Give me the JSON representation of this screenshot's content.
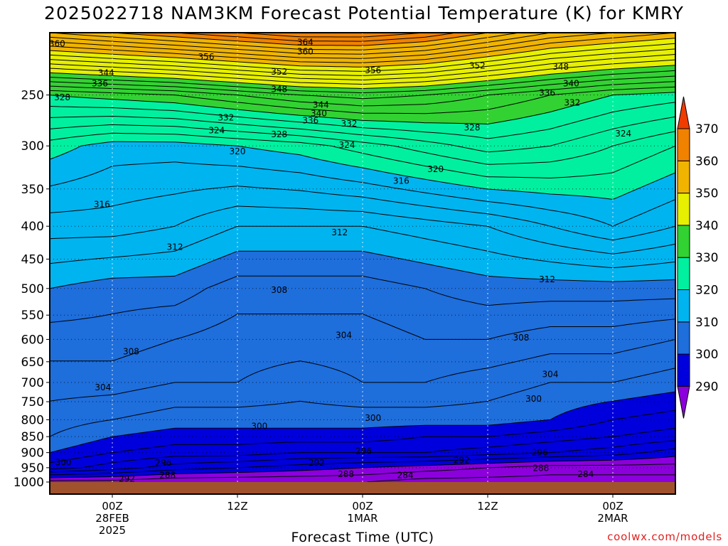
{
  "chart_data": {
    "type": "heatmap",
    "title": "2025022718 NAM3KM Forecast Potential Temperature (K) for KMRY",
    "xlabel": "Forecast Time (UTC)",
    "ylabel": "",
    "y_scale": "log",
    "ylim": [
      1000,
      200
    ],
    "y_ticks": [
      250,
      300,
      350,
      400,
      450,
      500,
      550,
      600,
      650,
      700,
      750,
      800,
      850,
      900,
      950,
      1000
    ],
    "x_range_hours": [
      -6,
      54
    ],
    "x_ticks": [
      {
        "hour": 0,
        "lines": [
          "00Z",
          "28FEB",
          "2025"
        ]
      },
      {
        "hour": 12,
        "lines": [
          "12Z"
        ]
      },
      {
        "hour": 24,
        "lines": [
          "00Z",
          "1MAR"
        ]
      },
      {
        "hour": 36,
        "lines": [
          "12Z"
        ]
      },
      {
        "hour": 48,
        "lines": [
          "00Z",
          "2MAR"
        ]
      }
    ],
    "grid": true,
    "colorbar": {
      "ticks": [
        290,
        300,
        310,
        320,
        330,
        340,
        350,
        360,
        370
      ],
      "bands": [
        {
          "from": 280,
          "to": 290,
          "color": "#8c00dc"
        },
        {
          "from": 290,
          "to": 300,
          "color": "#0000dc"
        },
        {
          "from": 300,
          "to": 310,
          "color": "#1e6edc"
        },
        {
          "from": 310,
          "to": 320,
          "color": "#00b4f0"
        },
        {
          "from": 320,
          "to": 330,
          "color": "#00f0a0"
        },
        {
          "from": 330,
          "to": 340,
          "color": "#32d232"
        },
        {
          "from": 340,
          "to": 350,
          "color": "#e6f000"
        },
        {
          "from": 350,
          "to": 360,
          "color": "#f0b400"
        },
        {
          "from": 360,
          "to": 370,
          "color": "#f08200"
        },
        {
          "from": 370,
          "to": 380,
          "color": "#f03c00"
        }
      ]
    },
    "ground_color": "#a0522d",
    "isentrope_profile": {
      "hours": [
        -6,
        0,
        6,
        12,
        18,
        24,
        30,
        36,
        42,
        48,
        54
      ],
      "levels": [
        {
          "p": 1000,
          "theta": [
            287,
            287,
            286,
            286,
            286,
            286,
            285,
            285,
            285,
            285,
            285
          ]
        },
        {
          "p": 950,
          "theta": [
            297,
            295,
            293,
            292,
            291,
            290,
            289,
            288,
            287,
            287,
            287
          ]
        },
        {
          "p": 900,
          "theta": [
            300,
            298,
            297,
            297,
            296,
            296,
            296,
            295,
            294,
            293,
            291
          ]
        },
        {
          "p": 850,
          "theta": [
            302,
            300,
            299,
            299,
            299,
            299,
            298,
            298,
            297,
            296,
            295
          ]
        },
        {
          "p": 800,
          "theta": [
            303,
            302,
            301,
            301,
            301,
            301,
            301,
            301,
            300,
            298,
            297
          ]
        },
        {
          "p": 700,
          "theta": [
            305,
            305,
            304,
            304,
            303,
            304,
            304,
            303,
            302,
            302,
            301
          ]
        },
        {
          "p": 600,
          "theta": [
            307,
            307,
            306,
            305,
            305,
            305,
            306,
            306,
            305,
            305,
            304
          ]
        },
        {
          "p": 500,
          "theta": [
            310,
            309,
            309,
            307,
            307,
            307,
            308,
            309,
            309,
            309,
            309
          ]
        },
        {
          "p": 400,
          "theta": [
            315,
            315,
            314,
            312,
            312,
            312,
            313,
            314,
            316,
            318,
            316
          ]
        },
        {
          "p": 300,
          "theta": [
            321,
            319,
            319,
            320,
            321,
            323,
            325,
            327,
            326,
            324,
            322
          ]
        },
        {
          "p": 250,
          "theta": [
            330,
            331,
            332,
            334,
            336,
            337,
            336,
            334,
            332,
            330,
            329
          ]
        },
        {
          "p": 200,
          "theta": [
            358,
            360,
            362,
            364,
            366,
            366,
            364,
            360,
            356,
            354,
            352
          ]
        }
      ]
    },
    "contour_labels": [
      {
        "hour": -5.3,
        "p": 208,
        "text": "360"
      },
      {
        "hour": 18.5,
        "p": 207,
        "text": "364"
      },
      {
        "hour": 18.5,
        "p": 214,
        "text": "360"
      },
      {
        "hour": 9.0,
        "p": 218,
        "text": "356"
      },
      {
        "hour": 25.0,
        "p": 229,
        "text": "356"
      },
      {
        "hour": 35.0,
        "p": 225,
        "text": "352"
      },
      {
        "hour": 43.0,
        "p": 226,
        "text": "348"
      },
      {
        "hour": 16.0,
        "p": 230,
        "text": "352"
      },
      {
        "hour": 16.0,
        "p": 245,
        "text": "348"
      },
      {
        "hour": -0.6,
        "p": 231,
        "text": "344"
      },
      {
        "hour": -1.2,
        "p": 240,
        "text": "336"
      },
      {
        "hour": -4.8,
        "p": 252,
        "text": "328"
      },
      {
        "hour": 20.0,
        "p": 259,
        "text": "344"
      },
      {
        "hour": 19.8,
        "p": 267,
        "text": "340"
      },
      {
        "hour": 19.0,
        "p": 274,
        "text": "336"
      },
      {
        "hour": 22.7,
        "p": 277,
        "text": "332"
      },
      {
        "hour": 10.9,
        "p": 271,
        "text": "332"
      },
      {
        "hour": 44.0,
        "p": 240,
        "text": "340"
      },
      {
        "hour": 41.7,
        "p": 248,
        "text": "336"
      },
      {
        "hour": 44.1,
        "p": 257,
        "text": "332"
      },
      {
        "hour": 10.0,
        "p": 284,
        "text": "324"
      },
      {
        "hour": 16.0,
        "p": 288,
        "text": "328"
      },
      {
        "hour": 34.5,
        "p": 281,
        "text": "328"
      },
      {
        "hour": 49.0,
        "p": 287,
        "text": "324"
      },
      {
        "hour": 22.5,
        "p": 299,
        "text": "324"
      },
      {
        "hour": 12.0,
        "p": 306,
        "text": "320"
      },
      {
        "hour": 31.0,
        "p": 326,
        "text": "320"
      },
      {
        "hour": 27.7,
        "p": 340,
        "text": "316"
      },
      {
        "hour": -1.0,
        "p": 370,
        "text": "316"
      },
      {
        "hour": 21.8,
        "p": 409,
        "text": "312"
      },
      {
        "hour": 6.0,
        "p": 431,
        "text": "312"
      },
      {
        "hour": 41.7,
        "p": 484,
        "text": "312"
      },
      {
        "hour": 16.0,
        "p": 503,
        "text": "308"
      },
      {
        "hour": 22.2,
        "p": 591,
        "text": "304"
      },
      {
        "hour": 1.8,
        "p": 627,
        "text": "308"
      },
      {
        "hour": 39.2,
        "p": 596,
        "text": "308"
      },
      {
        "hour": 42.0,
        "p": 680,
        "text": "304"
      },
      {
        "hour": -0.9,
        "p": 713,
        "text": "304"
      },
      {
        "hour": 40.4,
        "p": 742,
        "text": "300"
      },
      {
        "hour": 25.0,
        "p": 795,
        "text": "300"
      },
      {
        "hour": 14.1,
        "p": 819,
        "text": "300"
      },
      {
        "hour": 24.1,
        "p": 895,
        "text": "296"
      },
      {
        "hour": 33.5,
        "p": 925,
        "text": "292"
      },
      {
        "hour": 41.0,
        "p": 900,
        "text": "296"
      },
      {
        "hour": 19.6,
        "p": 933,
        "text": "292"
      },
      {
        "hour": 4.9,
        "p": 934,
        "text": "296"
      },
      {
        "hour": -4.7,
        "p": 932,
        "text": "300"
      },
      {
        "hour": 41.1,
        "p": 952,
        "text": "288"
      },
      {
        "hour": 45.4,
        "p": 972,
        "text": "284"
      },
      {
        "hour": 22.4,
        "p": 972,
        "text": "288"
      },
      {
        "hour": 28.1,
        "p": 976,
        "text": "284"
      },
      {
        "hour": 5.3,
        "p": 976,
        "text": "288"
      },
      {
        "hour": 1.4,
        "p": 988,
        "text": "292"
      }
    ]
  },
  "credit": "coolwx.com/models"
}
